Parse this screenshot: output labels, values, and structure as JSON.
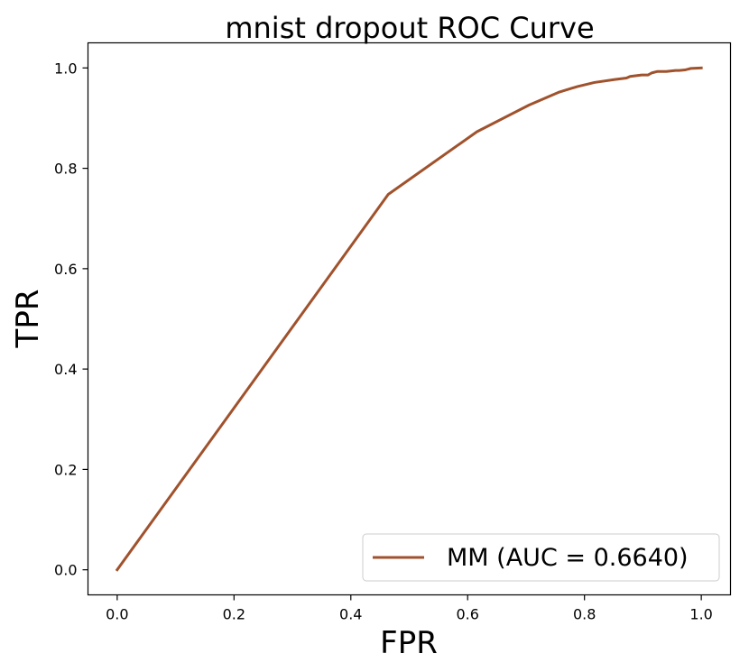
{
  "chart_data": {
    "type": "line",
    "title": "mnist dropout ROC Curve",
    "xlabel": "FPR",
    "ylabel": "TPR",
    "xlim": [
      -0.05,
      1.05
    ],
    "ylim": [
      -0.05,
      1.05
    ],
    "x_ticks": [
      0.0,
      0.2,
      0.4,
      0.6,
      0.8,
      1.0
    ],
    "y_ticks": [
      0.0,
      0.2,
      0.4,
      0.6,
      0.8,
      1.0
    ],
    "x_tick_labels": [
      "0.0",
      "0.2",
      "0.4",
      "0.6",
      "0.8",
      "1.0"
    ],
    "y_tick_labels": [
      "0.0",
      "0.2",
      "0.4",
      "0.6",
      "0.8",
      "1.0"
    ],
    "grid": false,
    "legend_position": "lower-right",
    "series": [
      {
        "name": "MM (AUC = 0.6640)",
        "color": "#a0522d",
        "x": [
          0.0,
          0.464,
          0.616,
          0.705,
          0.757,
          0.788,
          0.817,
          0.852,
          0.872,
          0.878,
          0.898,
          0.909,
          0.915,
          0.925,
          0.94,
          0.956,
          0.962,
          0.972,
          0.982,
          1.0
        ],
        "y": [
          0.0,
          0.748,
          0.873,
          0.926,
          0.952,
          0.963,
          0.971,
          0.977,
          0.98,
          0.983,
          0.986,
          0.986,
          0.99,
          0.993,
          0.993,
          0.995,
          0.995,
          0.996,
          0.999,
          1.0
        ]
      }
    ]
  }
}
